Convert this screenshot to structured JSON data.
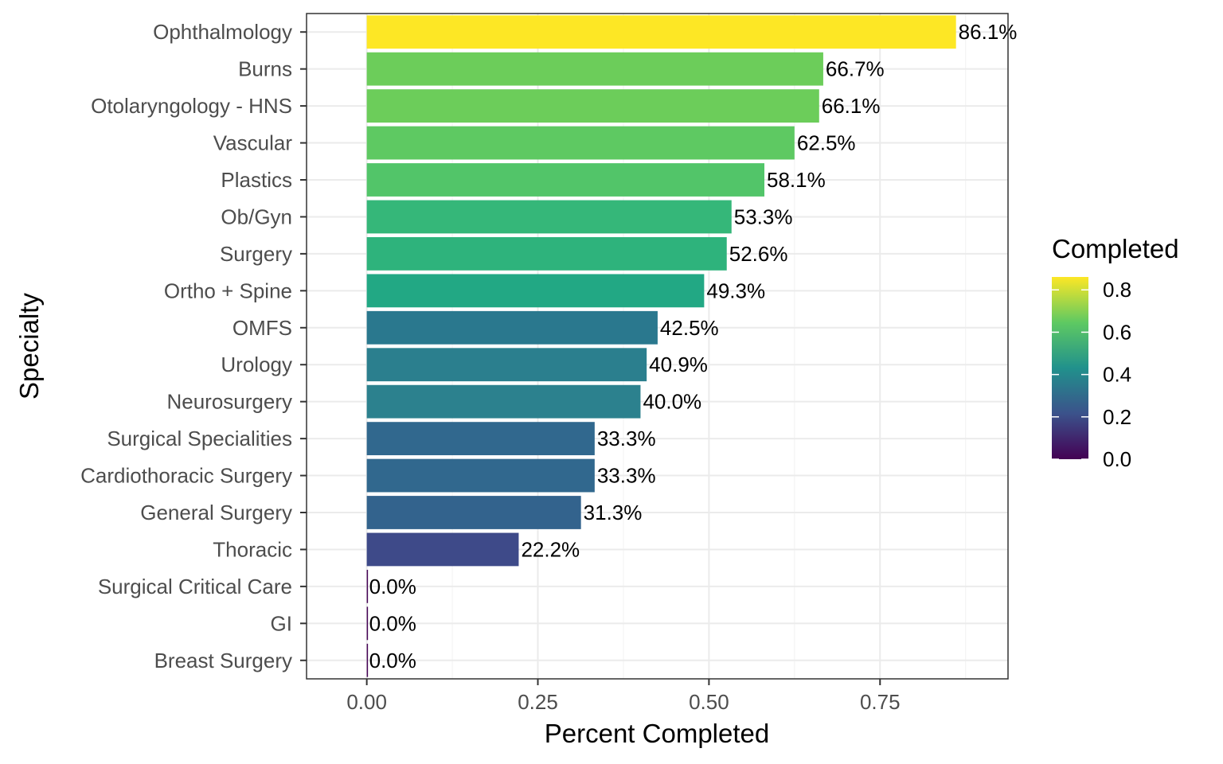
{
  "chart_data": {
    "type": "bar",
    "orientation": "horizontal",
    "xlabel": "Percent Completed",
    "ylabel": "Specialty",
    "xlim": [
      -0.088,
      0.937
    ],
    "x_ticks": [
      0.0,
      0.25,
      0.5,
      0.75
    ],
    "x_tick_labels": [
      "0.00",
      "0.25",
      "0.50",
      "0.75"
    ],
    "grid": true,
    "categories": [
      "Ophthalmology",
      "Burns",
      "Otolaryngology - HNS",
      "Vascular",
      "Plastics",
      "Ob/Gyn",
      "Surgery",
      "Ortho + Spine",
      "OMFS",
      "Urology",
      "Neurosurgery",
      "Surgical Specialities",
      "Cardiothoracic Surgery",
      "General Surgery",
      "Thoracic",
      "Surgical Critical Care",
      "GI",
      "Breast Surgery"
    ],
    "values": [
      0.861,
      0.667,
      0.661,
      0.625,
      0.581,
      0.533,
      0.526,
      0.493,
      0.425,
      0.409,
      0.4,
      0.333,
      0.333,
      0.313,
      0.222,
      0.0,
      0.0,
      0.0
    ],
    "data_labels": [
      "86.1%",
      "66.7%",
      "66.1%",
      "62.5%",
      "58.1%",
      "53.3%",
      "52.6%",
      "49.3%",
      "42.5%",
      "40.9%",
      "40.0%",
      "33.3%",
      "33.3%",
      "31.3%",
      "22.2%",
      "0.0%",
      "0.0%",
      "0.0%"
    ],
    "colors": [
      "#fde725",
      "#6ccd5a",
      "#6ccd5a",
      "#5ec962",
      "#52c569",
      "#35b779",
      "#2eb37c",
      "#22a884",
      "#2a788e",
      "#2b7f8e",
      "#2c818e",
      "#31688e",
      "#31688e",
      "#33638d",
      "#3e4a89",
      "#440154",
      "#440154",
      "#440154"
    ],
    "legend": {
      "title": "Completed",
      "position": "right",
      "ticks": [
        0.0,
        0.2,
        0.4,
        0.6,
        0.8
      ],
      "tick_labels": [
        "0.0",
        "0.2",
        "0.4",
        "0.6",
        "0.8"
      ],
      "range": [
        0,
        0.861
      ],
      "gradient": [
        "#440154",
        "#3b528b",
        "#21918c",
        "#5ec962",
        "#fde725"
      ]
    }
  }
}
